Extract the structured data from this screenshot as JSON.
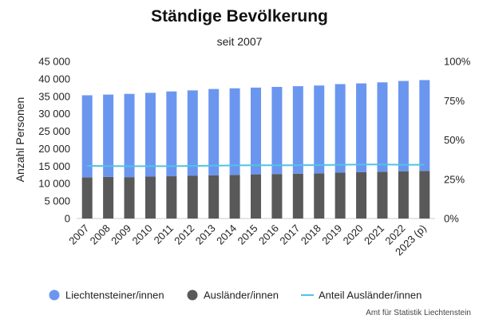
{
  "header": {
    "title": "Ständige Bevölkerung",
    "subtitle": "seit 2007"
  },
  "source": "Amt für Statistik Liechtenstein",
  "colors": {
    "liechtensteiner": "#6b96f0",
    "auslaender": "#595959",
    "anteil": "#4fc3e6"
  },
  "chart_data": {
    "type": "bar",
    "stacked": true,
    "title": "Ständige Bevölkerung",
    "subtitle": "seit 2007",
    "xlabel": "",
    "ylabel": "Anzahl Personen",
    "ylim": [
      0,
      45000
    ],
    "y_ticks": [
      "0",
      "5 000",
      "10 000",
      "15 000",
      "20 000",
      "25 000",
      "30 000",
      "35 000",
      "40 000",
      "45 000"
    ],
    "y2lim": [
      0,
      100
    ],
    "y2_ticks": [
      "0%",
      "25%",
      "50%",
      "75%",
      "100%"
    ],
    "categories": [
      "2007",
      "2008",
      "2009",
      "2010",
      "2011",
      "2012",
      "2013",
      "2014",
      "2015",
      "2016",
      "2017",
      "2018",
      "2019",
      "2020",
      "2021",
      "2022",
      "2023 (p)"
    ],
    "series": [
      {
        "name": "Ausländer/innen",
        "type": "bar",
        "values": [
          11800,
          11900,
          11850,
          12000,
          12100,
          12300,
          12400,
          12500,
          12650,
          12750,
          12850,
          12950,
          13150,
          13300,
          13400,
          13550,
          13650
        ]
      },
      {
        "name": "Liechtensteiner/innen",
        "type": "bar",
        "values": [
          23500,
          23600,
          23850,
          24000,
          24300,
          24400,
          24700,
          24800,
          24850,
          24950,
          25050,
          25150,
          25350,
          25400,
          25600,
          25850,
          26000
        ]
      },
      {
        "name": "Anteil Ausländer/innen",
        "type": "line",
        "axis": "right",
        "values": [
          33.5,
          33.4,
          33.3,
          33.3,
          33.3,
          33.5,
          33.6,
          33.8,
          33.9,
          33.9,
          33.9,
          34.0,
          34.2,
          34.4,
          34.4,
          34.2,
          34.2
        ]
      }
    ],
    "legend": [
      "Liechtensteiner/innen",
      "Ausländer/innen",
      "Anteil Ausländer/innen"
    ],
    "legend_position": "bottom",
    "grid": false
  }
}
